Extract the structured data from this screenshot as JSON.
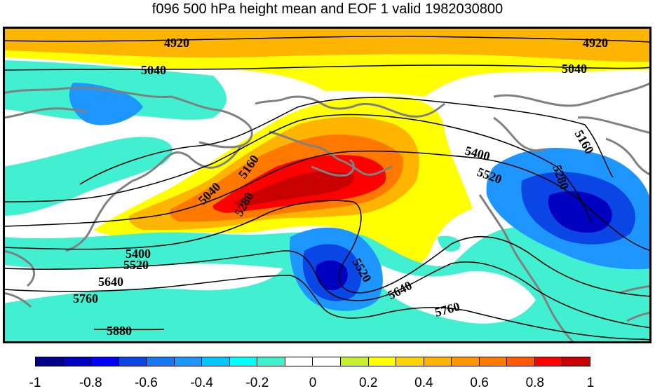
{
  "title": "f096 500 hPa height mean and EOF 1 valid 1982030800",
  "contour_labels": [
    "4920",
    "4920",
    "5040",
    "5040",
    "5040",
    "5160",
    "5160",
    "5280",
    "5280",
    "5400",
    "5400",
    "5520",
    "5520",
    "5520",
    "5640",
    "5640",
    "5760",
    "5760",
    "5880"
  ],
  "colorbar": {
    "colors": [
      "#00008b",
      "#0000c0",
      "#0000ff",
      "#0a46e6",
      "#1478f0",
      "#1e96ff",
      "#00c8ff",
      "#00ffff",
      "#40f0d0",
      "#ffffff",
      "#ffffff",
      "#c8f032",
      "#ffff00",
      "#ffd200",
      "#ffb400",
      "#ff9600",
      "#ff7800",
      "#ff5a00",
      "#ff0000",
      "#c80000"
    ],
    "tick_labels": [
      "-1",
      "-0.8",
      "-0.6",
      "-0.4",
      "-0.2",
      "0",
      "0.2",
      "0.4",
      "0.6",
      "0.8",
      "1"
    ]
  }
}
